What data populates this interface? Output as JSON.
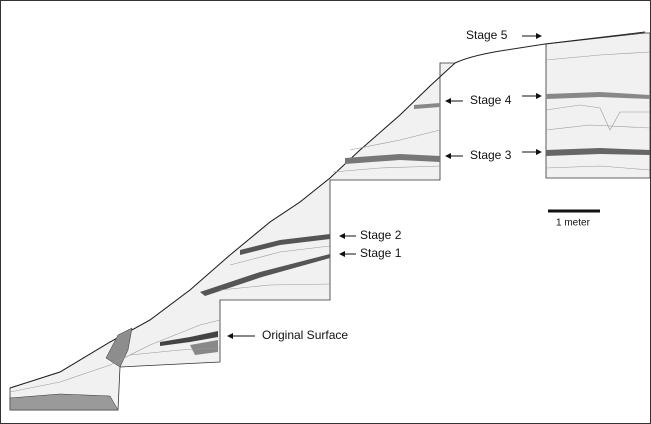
{
  "stages": [
    {
      "label": "Stage 5"
    },
    {
      "label": "Stage 4"
    },
    {
      "label": "Stage 3"
    },
    {
      "label": "Stage 2"
    },
    {
      "label": "Stage 1"
    }
  ],
  "original_surface": "Original Surface",
  "scale_label": "1 meter"
}
